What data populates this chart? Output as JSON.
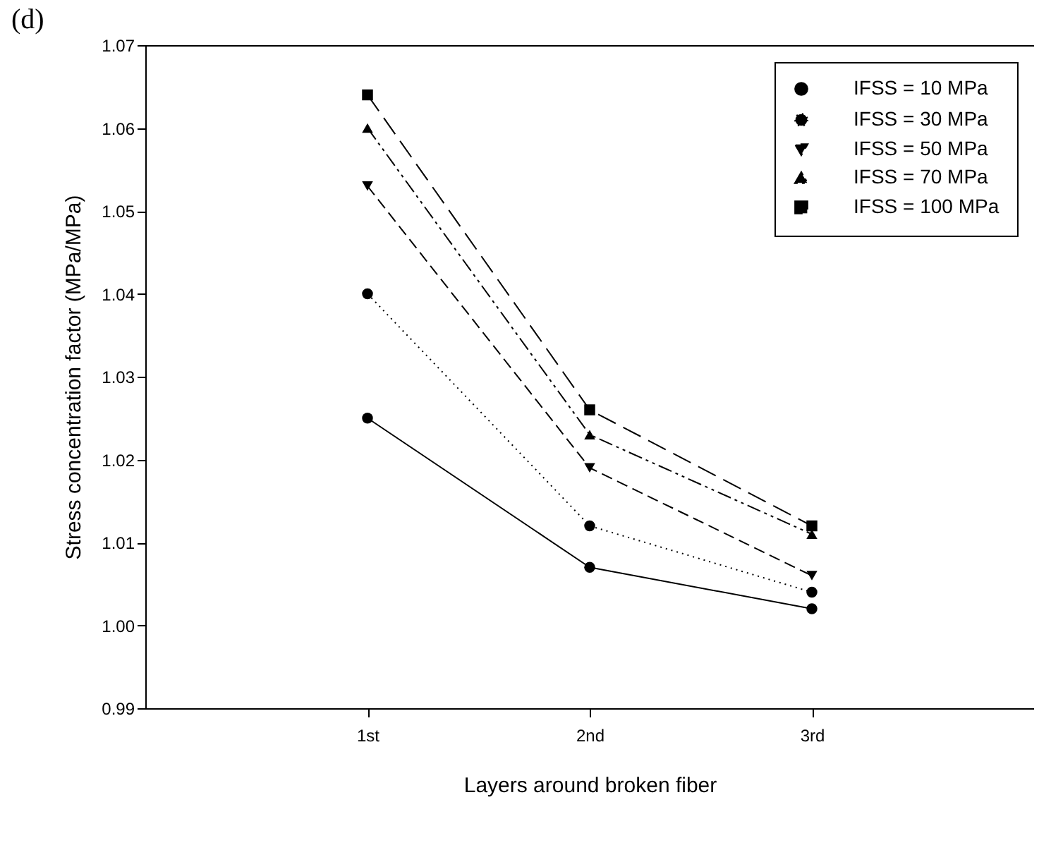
{
  "chart_data": {
    "type": "line",
    "title": "(d)",
    "xlabel": "Layers around broken fiber",
    "ylabel": "Stress concentration factor (MPa/MPa)",
    "categories": [
      "1st",
      "2nd",
      "3rd"
    ],
    "series": [
      {
        "name": "IFSS = 10 MPa",
        "color": "#000000",
        "marker": "circle",
        "line_style": "solid",
        "values": [
          1.025,
          1.007,
          1.002
        ]
      },
      {
        "name": "IFSS = 30 MPa",
        "color": "#000000",
        "marker": "circle",
        "line_style": "dotted",
        "values": [
          1.04,
          1.012,
          1.004
        ]
      },
      {
        "name": "IFSS = 50 MPa",
        "color": "#000000",
        "marker": "triangle-down",
        "line_style": "dashed",
        "values": [
          1.053,
          1.019,
          1.006
        ]
      },
      {
        "name": "IFSS = 70 MPa",
        "color": "#000000",
        "marker": "triangle",
        "line_style": "dashdotdot",
        "values": [
          1.06,
          1.023,
          1.011
        ]
      },
      {
        "name": "IFSS = 100 MPa",
        "color": "#000000",
        "marker": "square",
        "line_style": "longdash",
        "values": [
          1.064,
          1.026,
          1.012
        ]
      }
    ],
    "ylim": [
      0.99,
      1.07
    ],
    "yticks": [
      0.99,
      {
        "value": 1.0,
        "label": "1.00"
      },
      1.01,
      1.02,
      1.03,
      1.04,
      1.05,
      1.06,
      1.07
    ],
    "grid": false,
    "legend": "top right"
  }
}
